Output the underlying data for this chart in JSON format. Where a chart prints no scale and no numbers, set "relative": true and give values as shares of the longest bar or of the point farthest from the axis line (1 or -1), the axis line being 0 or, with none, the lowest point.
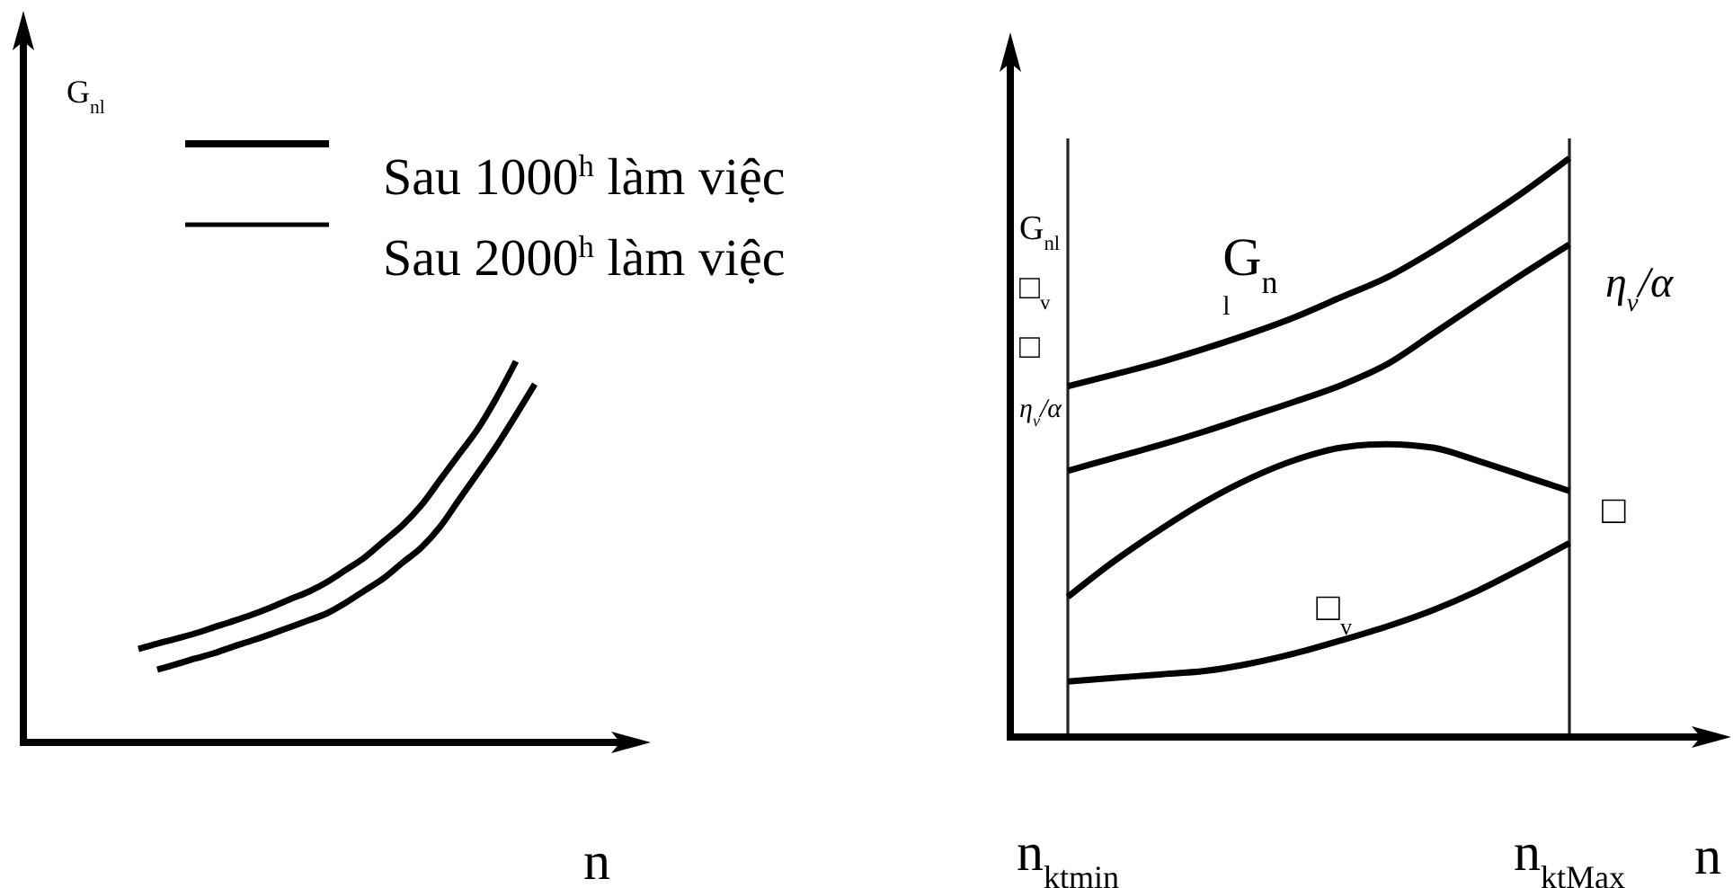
{
  "chart_data": [
    {
      "type": "line",
      "ylabel": "G$_{nl}$",
      "xlabel": "n",
      "relative": true,
      "legend": "top",
      "categories": [
        null,
        null,
        null,
        null,
        null,
        null,
        null,
        null,
        null,
        null,
        null,
        null,
        null,
        null,
        null,
        null,
        null,
        null,
        null,
        null,
        null,
        null
      ],
      "series": [
        {
          "name": "Sau 1000$^{h}$ làm việc",
          "color": "#000000",
          "values": [
            0.245,
            0.259,
            0.272,
            0.286,
            0.302,
            0.318,
            0.335,
            0.354,
            0.375,
            0.395,
            0.421,
            0.453,
            0.486,
            0.528,
            0.57,
            0.623,
            0.69,
            0.757,
            0.824,
            0.907,
            1,
            null
          ]
        },
        {
          "name": "Sau 2000$^{h}$ làm việc",
          "color": "#000000",
          "values": [
            null,
            0.191,
            0.205,
            0.22,
            0.234,
            0.251,
            0.267,
            0.284,
            0.302,
            0.32,
            0.339,
            0.367,
            0.399,
            0.431,
            0.472,
            0.512,
            0.567,
            0.638,
            0.708,
            0.78,
            0.859,
            0.94
          ]
        }
      ]
    },
    {
      "type": "line",
      "ylabel": "G$_{nl}$\n□$_{v}$\n□\nη$_{v}$/α",
      "xlabel": "n",
      "relative": true,
      "categories": [
        "n$_{ktmin}$",
        null,
        null,
        null,
        null,
        null,
        null,
        null,
        null,
        null,
        null,
        "n$_{ktMax}$"
      ],
      "ref_lines": [
        {
          "axis": "x",
          "value": "n$_{ktmin}$"
        },
        {
          "axis": "x",
          "value": "n$_{ktMax}$"
        }
      ],
      "series": [
        {
          "name": "G$_{n}$\nl",
          "color": "#000000",
          "values": [
            0.606,
            0.626,
            0.647,
            0.671,
            0.697,
            0.726,
            0.76,
            0.794,
            0.839,
            0.889,
            0.942,
            1
          ]
        },
        {
          "name": "η$_{v}$/α",
          "color": "#000000",
          "values": [
            0.46,
            0.482,
            0.504,
            0.528,
            0.554,
            0.58,
            0.608,
            0.644,
            0.696,
            0.749,
            0.801,
            0.851
          ]
        },
        {
          "name": "□",
          "color": "#000000",
          "values": [
            0.242,
            0.303,
            0.357,
            0.406,
            0.447,
            0.479,
            0.5,
            0.506,
            0.5,
            0.477,
            0.451,
            0.425
          ]
        },
        {
          "name": "□$_{v}$",
          "color": "#000000",
          "values": [
            0.096,
            0.102,
            0.108,
            0.114,
            0.127,
            0.145,
            0.167,
            0.191,
            0.219,
            0.253,
            0.293,
            0.335
          ]
        }
      ]
    }
  ]
}
